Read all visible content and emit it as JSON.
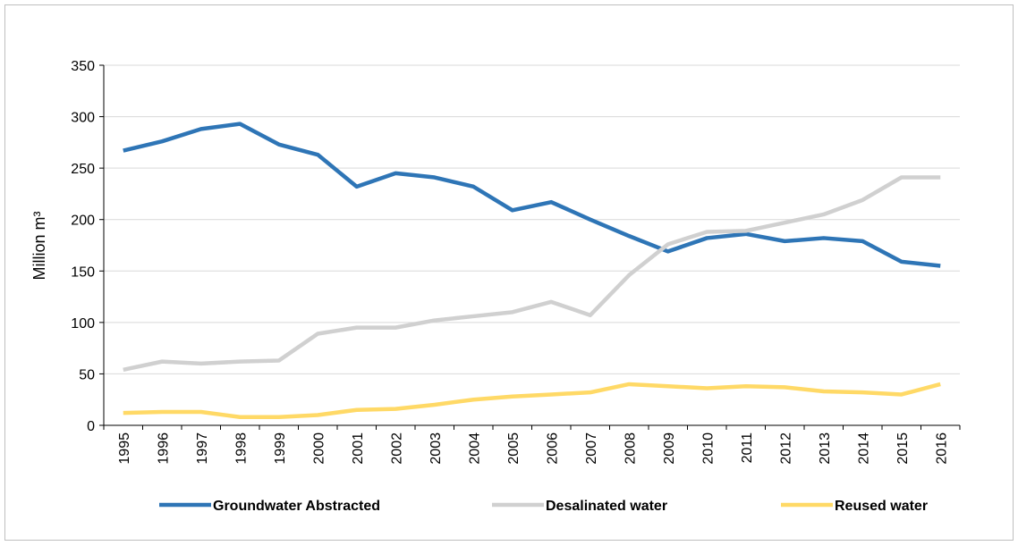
{
  "chart_data": {
    "type": "line",
    "y_label": "Million m³",
    "categories": [
      "1995",
      "1996",
      "1997",
      "1998",
      "1999",
      "2000",
      "2001",
      "2002",
      "2003",
      "2004",
      "2005",
      "2006",
      "2007",
      "2008",
      "2009",
      "2010",
      "2011",
      "2012",
      "2013",
      "2014",
      "2015",
      "2016"
    ],
    "series": [
      {
        "name": "Groundwater Abstracted",
        "color": "#2e75b6",
        "values": [
          267,
          276,
          288,
          293,
          273,
          263,
          232,
          245,
          241,
          232,
          209,
          217,
          200,
          184,
          169,
          182,
          186,
          179,
          182,
          179,
          159,
          155
        ]
      },
      {
        "name": "Desalinated water",
        "color": "#d0d0d0",
        "values": [
          54,
          62,
          60,
          62,
          63,
          89,
          95,
          95,
          102,
          106,
          110,
          120,
          107,
          146,
          176,
          188,
          189,
          197,
          205,
          219,
          241,
          241
        ]
      },
      {
        "name": "Reused water",
        "color": "#ffd966",
        "values": [
          12,
          13,
          13,
          8,
          8,
          10,
          15,
          16,
          20,
          25,
          28,
          30,
          32,
          40,
          38,
          36,
          38,
          37,
          33,
          32,
          30,
          40
        ]
      }
    ],
    "ylim": [
      0,
      350
    ],
    "yticks": [
      0,
      50,
      100,
      150,
      200,
      250,
      300,
      350
    ],
    "grid": true
  }
}
